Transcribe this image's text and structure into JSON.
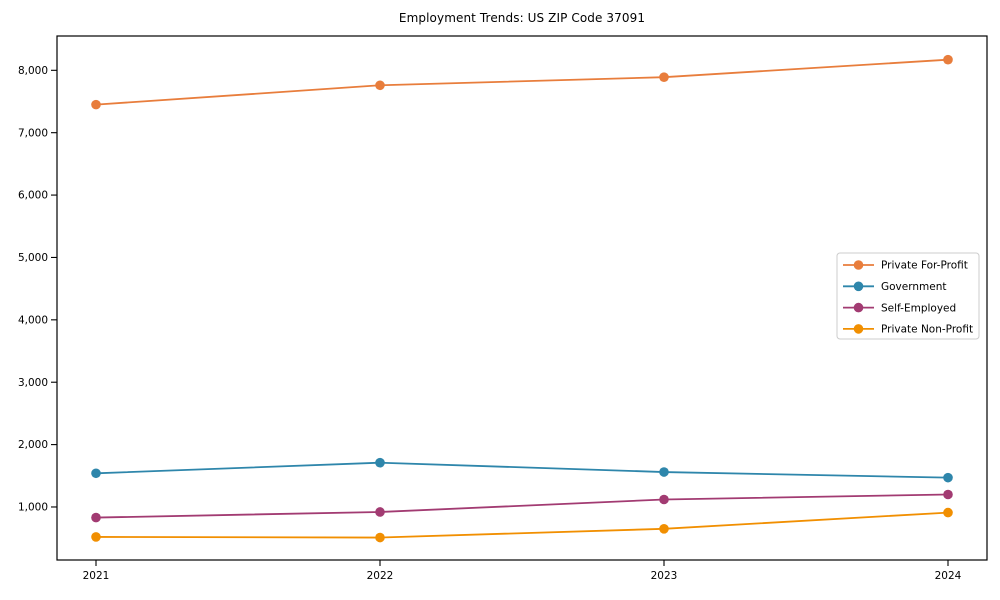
{
  "chart_data": {
    "type": "line",
    "title": "Employment Trends: US ZIP Code 37091",
    "xlabel": "",
    "ylabel": "",
    "categories": [
      "2021",
      "2022",
      "2023",
      "2024"
    ],
    "series": [
      {
        "name": "Private For-Profit",
        "color": "#e87d3c",
        "values": [
          7450,
          7760,
          7890,
          8170
        ]
      },
      {
        "name": "Government",
        "color": "#2e86ab",
        "values": [
          1540,
          1710,
          1560,
          1470
        ]
      },
      {
        "name": "Self-Employed",
        "color": "#a23b72",
        "values": [
          830,
          920,
          1120,
          1200
        ]
      },
      {
        "name": "Private Non-Profit",
        "color": "#f18f01",
        "values": [
          520,
          510,
          650,
          910
        ]
      }
    ],
    "yticks": [
      1000,
      2000,
      3000,
      4000,
      5000,
      6000,
      7000,
      8000
    ],
    "ytick_labels": [
      "1,000",
      "2,000",
      "3,000",
      "4,000",
      "5,000",
      "6,000",
      "7,000",
      "8,000"
    ],
    "ylim": [
      150,
      8550
    ],
    "grid": false,
    "marker": "o",
    "legend_position": "center right",
    "frame_color": "#000000",
    "tick_label_color": "#000000",
    "legend_border_color": "#cccccc",
    "legend_background": "#ffffff"
  }
}
